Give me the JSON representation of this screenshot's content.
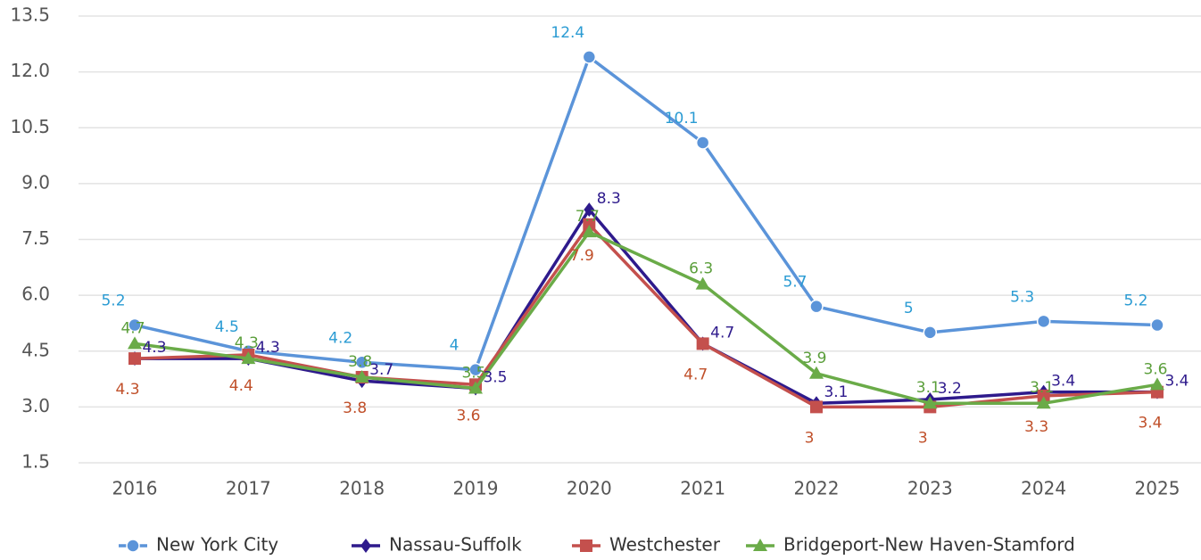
{
  "chart_data": {
    "type": "line",
    "categories": [
      "2016",
      "2017",
      "2018",
      "2019",
      "2020",
      "2021",
      "2022",
      "2023",
      "2024",
      "2025"
    ],
    "series": [
      {
        "name": "New York City",
        "color": "#5b94d9",
        "label_color": "#2a9bd3",
        "marker": "circle",
        "values": [
          5.2,
          4.5,
          4.2,
          4,
          12.4,
          10.1,
          5.7,
          5,
          5.3,
          5.2
        ]
      },
      {
        "name": "Nassau-Suffolk",
        "color": "#2e1a8c",
        "label_color": "#2e1a8c",
        "marker": "diamond",
        "values": [
          4.3,
          4.3,
          3.7,
          3.5,
          8.3,
          4.7,
          3.1,
          3.2,
          3.4,
          3.4
        ]
      },
      {
        "name": "Westchester",
        "color": "#c4504d",
        "label_color": "#c0502a",
        "marker": "square",
        "values": [
          4.3,
          4.4,
          3.8,
          3.6,
          7.9,
          4.7,
          3,
          3,
          3.3,
          3.4
        ]
      },
      {
        "name": "Bridgeport-New Haven-Stamford",
        "color": "#6aab48",
        "label_color": "#5a9e3a",
        "marker": "triangle",
        "values": [
          4.7,
          4.3,
          3.8,
          3.5,
          7.7,
          6.3,
          3.9,
          3.1,
          3.1,
          3.6
        ]
      }
    ],
    "ylim": [
      1.5,
      13.5
    ],
    "yticks": [
      1.5,
      {
        "value": 3,
        "label": "3.0"
      },
      4.5,
      {
        "value": 6,
        "label": "6.0"
      },
      7.5,
      {
        "value": 9,
        "label": "9.0"
      },
      10.5,
      {
        "value": 12,
        "label": "12.0"
      },
      13.5
    ],
    "grid": true,
    "legend": "bottom"
  }
}
